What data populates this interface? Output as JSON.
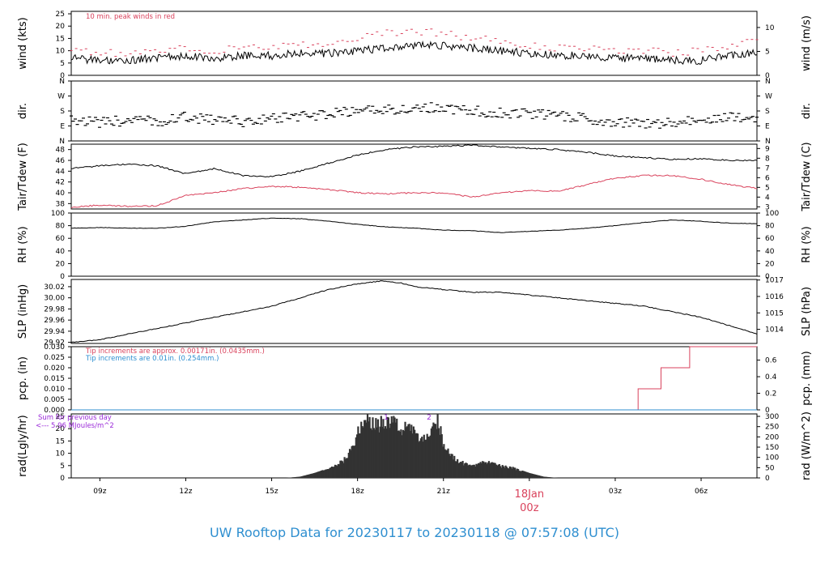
{
  "footer_title": "UW Rooftop Data for 20230117  to  20230118 @ 07:57:08  (UTC)",
  "colors": {
    "black": "#000000",
    "red": "#d9425c",
    "blue": "#2f8fd0",
    "purple": "#9b2bd9",
    "gray": "#777777"
  },
  "chart_data": {
    "x_axis": {
      "ticks": [
        {
          "label": "09z",
          "hour": 9
        },
        {
          "label": "12z",
          "hour": 12
        },
        {
          "label": "15z",
          "hour": 15
        },
        {
          "label": "18z",
          "hour": 18
        },
        {
          "label": "21z",
          "hour": 21
        },
        {
          "label": "03z",
          "hour": 27
        },
        {
          "label": "06z",
          "hour": 30
        }
      ],
      "date_label": "18Jan",
      "date_sub": "00z",
      "date_hour": 24,
      "range_hours": [
        8.0,
        31.95
      ]
    },
    "panels": [
      {
        "id": "wind",
        "type": "line",
        "ylabel_left": "wind (kts)",
        "ylabel_right": "wind (m/s)",
        "ylim": [
          0,
          26
        ],
        "ticks_left": [
          0,
          5,
          10,
          15,
          20,
          25
        ],
        "ticks_right": [
          0,
          5,
          10
        ],
        "right_scale": 0.5144,
        "annotation": "10 min. peak winds in red",
        "series": [
          {
            "name": "wind",
            "color": "#000000",
            "x": [
              8,
              9,
              10,
              11,
              12,
              13,
              14,
              15,
              16,
              17,
              18,
              19,
              20,
              21,
              22,
              23,
              24,
              25,
              26,
              27,
              28,
              29,
              30,
              31,
              31.95
            ],
            "y": [
              7,
              6,
              6,
              7,
              8,
              7,
              8,
              8,
              9,
              9,
              10,
              11,
              12,
              12,
              11,
              10,
              9,
              8,
              8,
              7,
              7,
              6,
              6,
              8,
              9
            ]
          },
          {
            "name": "peak",
            "color": "#d9425c",
            "x": [
              8,
              9,
              10,
              11,
              12,
              13,
              14,
              15,
              16,
              17,
              18,
              19,
              20,
              21,
              22,
              23,
              24,
              25,
              26,
              27,
              28,
              29,
              30,
              31,
              31.95
            ],
            "y": [
              10,
              9,
              9,
              10,
              11,
              10,
              11,
              12,
              12,
              13,
              15,
              17,
              18,
              17,
              15,
              14,
              12,
              11,
              11,
              10,
              10,
              9,
              10,
              12,
              14
            ]
          }
        ]
      },
      {
        "id": "dir",
        "type": "scatter",
        "ylabel_left": "dir.",
        "ylabel_right": "dir.",
        "ylim": [
          0,
          4
        ],
        "tick_labels": [
          "N",
          "E",
          "S",
          "W",
          "N"
        ],
        "series": [
          {
            "name": "direction",
            "color": "#000000",
            "x": [
              8,
              9,
              10,
              11,
              12,
              13,
              14,
              15,
              16,
              17,
              18,
              19,
              20,
              21,
              22,
              23,
              24,
              25,
              26,
              27,
              28,
              29,
              30,
              31,
              31.95
            ],
            "y": [
              1.5,
              1.2,
              1.4,
              1.3,
              1.6,
              1.4,
              1.3,
              1.5,
              1.6,
              1.8,
              2.0,
              2.1,
              2.2,
              2.2,
              2.0,
              1.9,
              1.8,
              1.7,
              1.5,
              1.3,
              1.1,
              1.2,
              1.4,
              1.6,
              1.6
            ]
          }
        ]
      },
      {
        "id": "temp",
        "type": "line",
        "ylabel_left": "Tair/Tdew (F)",
        "ylabel_right": "Tair/Tdew (C)",
        "ylim": [
          37,
          49
        ],
        "ticks_left": [
          38,
          40,
          42,
          44,
          46,
          48
        ],
        "ticks_right": [
          3,
          4,
          5,
          6,
          7,
          8,
          9
        ],
        "right_units": "celsius",
        "series": [
          {
            "name": "Tair",
            "color": "#000000",
            "x": [
              8,
              9,
              10,
              11,
              12,
              13,
              14,
              15,
              16,
              17,
              18,
              19,
              20,
              21,
              22,
              23,
              24,
              25,
              26,
              27,
              28,
              29,
              30,
              31,
              31.95
            ],
            "y": [
              44.5,
              45,
              45.3,
              45,
              43.5,
              44.5,
              43.2,
              43,
              44,
              45.5,
              47,
              48,
              48.5,
              48.6,
              48.8,
              48.5,
              48.2,
              48,
              47.5,
              46.8,
              46.5,
              46.2,
              46.3,
              46,
              46
            ]
          },
          {
            "name": "Tdew",
            "color": "#d9425c",
            "x": [
              8,
              9,
              10,
              11,
              12,
              13,
              14,
              15,
              16,
              17,
              18,
              19,
              20,
              21,
              22,
              23,
              24,
              25,
              26,
              27,
              28,
              29,
              30,
              31,
              31.95
            ],
            "y": [
              37.3,
              37.7,
              37.5,
              37.6,
              39.5,
              40,
              40.8,
              41.2,
              41,
              40.6,
              40,
              39.8,
              40,
              40,
              39.2,
              40,
              40.4,
              40.3,
              41.5,
              42.7,
              43.2,
              43.2,
              42.5,
              41.5,
              40.8
            ]
          }
        ]
      },
      {
        "id": "rh",
        "type": "line",
        "ylabel_left": "RH (%)",
        "ylabel_right": "RH (%)",
        "ylim": [
          0,
          100
        ],
        "ticks_left": [
          0,
          20,
          40,
          60,
          80,
          100
        ],
        "ticks_right": [
          0,
          20,
          40,
          60,
          80,
          100
        ],
        "series": [
          {
            "name": "RH",
            "color": "#000000",
            "x": [
              8,
              9,
              10,
              11,
              12,
              13,
              14,
              15,
              16,
              17,
              18,
              19,
              20,
              21,
              22,
              23,
              24,
              25,
              26,
              27,
              28,
              29,
              30,
              31,
              31.95
            ],
            "y": [
              76,
              77,
              76,
              76,
              79,
              86,
              89,
              92,
              91,
              87,
              82,
              78,
              76,
              73,
              72,
              69,
              71,
              73,
              76,
              80,
              85,
              89,
              87,
              84,
              83
            ]
          }
        ]
      },
      {
        "id": "slp",
        "type": "line",
        "ylabel_left": "SLP (inHg)",
        "ylabel_right": "SLP (hPa)",
        "ylim": [
          29.918,
          30.033
        ],
        "ticks_left": [
          "29.92",
          "29.94",
          "29.96",
          "29.98",
          "30.00",
          "30.02"
        ],
        "ticks_right": [
          1014,
          1015,
          1016,
          1017
        ],
        "right_units": "hPa",
        "series": [
          {
            "name": "SLP",
            "color": "#000000",
            "x": [
              8,
              9,
              10,
              11,
              12,
              13,
              14,
              15,
              16,
              17,
              18,
              18.8,
              19.5,
              20,
              21,
              22,
              23,
              24,
              25,
              26,
              27,
              28,
              29,
              30,
              31,
              31.95
            ],
            "y": [
              29.92,
              29.925,
              29.935,
              29.945,
              29.955,
              29.965,
              29.975,
              29.985,
              30.0,
              30.015,
              30.025,
              30.03,
              30.027,
              30.02,
              30.015,
              30.01,
              30.01,
              30.005,
              30.0,
              29.995,
              29.99,
              29.985,
              29.975,
              29.965,
              29.95,
              29.935
            ]
          }
        ]
      },
      {
        "id": "pcp",
        "type": "step",
        "ylabel_left": "pcp. (in)",
        "ylabel_right": "pcp. (mm)",
        "ylim": [
          0,
          0.03
        ],
        "ticks_left": [
          "0.000",
          "0.005",
          "0.010",
          "0.015",
          "0.020",
          "0.025",
          "0.030"
        ],
        "ticks_right": [
          "0",
          "0.2",
          "0.4",
          "0.6"
        ],
        "annotations": [
          {
            "text": "Tip increments are approx. 0.00171in. (0.0435mm.)",
            "color": "#d9425c"
          },
          {
            "text": "Tip increments are 0.01in. (0.254mm.)",
            "color": "#2f8fd0"
          }
        ],
        "series": [
          {
            "name": "pcp approx",
            "color": "#d9425c",
            "x": [
              8,
              27.8,
              27.8,
              28.6,
              28.6,
              29.6,
              29.6,
              31.95
            ],
            "y": [
              0,
              0,
              0.01,
              0.01,
              0.02,
              0.02,
              0.03,
              0.03
            ]
          },
          {
            "name": "pcp",
            "color": "#2f8fd0",
            "x": [
              8,
              31.95
            ],
            "y": [
              0,
              0
            ]
          }
        ]
      },
      {
        "id": "rad",
        "type": "area",
        "ylabel_left": "rad(Lgly/hr)",
        "ylabel_right": "rad (W/m^2)",
        "ylim": [
          0,
          26
        ],
        "ticks_left": [
          0,
          5,
          10,
          15,
          20,
          25
        ],
        "ticks_right": [
          0,
          50,
          100,
          150,
          200,
          250,
          300
        ],
        "annotations": [
          {
            "text": "Sum for previous day",
            "color": "#9b2bd9"
          },
          {
            "text": "<--- 5.96 MJoules/m^2",
            "color": "#9b2bd9"
          },
          {
            "text": "1",
            "color": "#9b2bd9"
          },
          {
            "text": "2",
            "color": "#9b2bd9"
          }
        ],
        "series": [
          {
            "name": "rad",
            "color": "#333333",
            "x": [
              15.5,
              16,
              16.5,
              17,
              17.5,
              17.8,
              18.1,
              18.3,
              18.6,
              19,
              19.5,
              20,
              20.5,
              20.8,
              21,
              21.5,
              22,
              22.5,
              23,
              23.5,
              24,
              24.5,
              25
            ],
            "y": [
              0,
              0.5,
              2,
              4,
              7,
              12,
              22,
              26,
              22,
              24,
              22,
              19,
              16,
              26,
              14,
              7,
              5,
              7,
              5,
              4,
              2,
              0.5,
              0
            ]
          }
        ]
      }
    ]
  }
}
